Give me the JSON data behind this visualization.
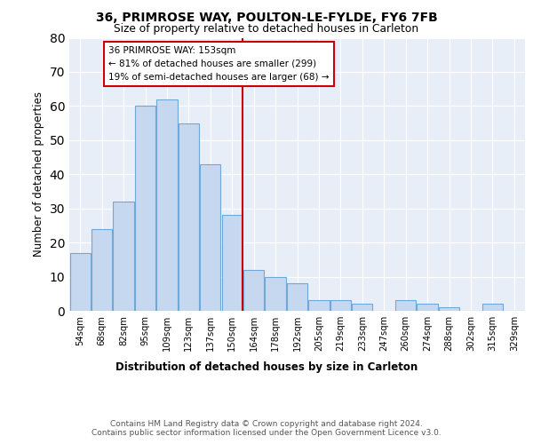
{
  "title1": "36, PRIMROSE WAY, POULTON-LE-FYLDE, FY6 7FB",
  "title2": "Size of property relative to detached houses in Carleton",
  "xlabel": "Distribution of detached houses by size in Carleton",
  "ylabel": "Number of detached properties",
  "bar_labels": [
    "54sqm",
    "68sqm",
    "82sqm",
    "95sqm",
    "109sqm",
    "123sqm",
    "137sqm",
    "150sqm",
    "164sqm",
    "178sqm",
    "192sqm",
    "205sqm",
    "219sqm",
    "233sqm",
    "247sqm",
    "260sqm",
    "274sqm",
    "288sqm",
    "302sqm",
    "315sqm",
    "329sqm"
  ],
  "bar_values": [
    17,
    24,
    32,
    60,
    62,
    55,
    43,
    28,
    12,
    10,
    8,
    3,
    3,
    2,
    0,
    3,
    2,
    1,
    0,
    2,
    0
  ],
  "bar_color": "#c5d8f0",
  "bar_edgecolor": "#6ea8d8",
  "vline_x": 7.5,
  "vline_color": "#cc0000",
  "annotation_text": "36 PRIMROSE WAY: 153sqm\n← 81% of detached houses are smaller (299)\n19% of semi-detached houses are larger (68) →",
  "annotation_box_color": "#cc0000",
  "ylim": [
    0,
    80
  ],
  "yticks": [
    0,
    10,
    20,
    30,
    40,
    50,
    60,
    70,
    80
  ],
  "background_color": "#e8eef8",
  "footer": "Contains HM Land Registry data © Crown copyright and database right 2024.\nContains public sector information licensed under the Open Government Licence v3.0."
}
